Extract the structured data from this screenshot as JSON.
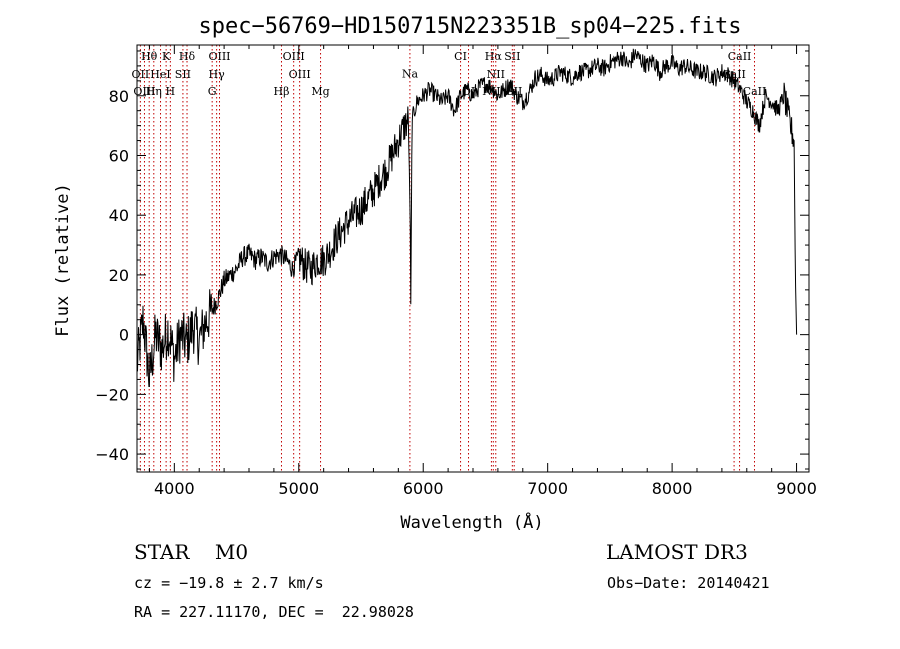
{
  "chart_data": {
    "type": "line",
    "title": "spec−56769−HD150715N223351B_sp04−225.fits",
    "xlabel": "Wavelength (Å)",
    "ylabel": "Flux (relative)",
    "xlim": [
      3700,
      9100
    ],
    "ylim": [
      -46,
      97
    ],
    "x_ticks": [
      4000,
      5000,
      6000,
      7000,
      8000,
      9000
    ],
    "y_ticks": [
      -40,
      -20,
      0,
      20,
      40,
      60,
      80
    ],
    "x_tick_labels": [
      "4000",
      "5000",
      "6000",
      "7000",
      "8000",
      "9000"
    ],
    "y_tick_labels": [
      "−40",
      "−20",
      "0",
      "20",
      "40",
      "60",
      "80"
    ],
    "series": [
      {
        "x": [
          3700,
          3750,
          3800,
          3850,
          3900,
          3950,
          4000,
          4050,
          4100,
          4150,
          4200,
          4250,
          4300,
          4350,
          4400,
          4450,
          4500,
          4550,
          4600,
          4650,
          4700,
          4750,
          4800,
          4850,
          4900,
          4950,
          5000,
          5050,
          5100,
          5150,
          5200,
          5250,
          5300,
          5350,
          5400,
          5450,
          5500,
          5550,
          5600,
          5650,
          5700,
          5750,
          5800,
          5850,
          5880,
          5895,
          5900,
          5910,
          5950,
          6000,
          6050,
          6100,
          6150,
          6200,
          6250,
          6300,
          6350,
          6400,
          6450,
          6500,
          6550,
          6600,
          6650,
          6700,
          6750,
          6800,
          6850,
          6900,
          6950,
          7000,
          7050,
          7100,
          7150,
          7200,
          7250,
          7300,
          7350,
          7400,
          7450,
          7500,
          7550,
          7600,
          7650,
          7700,
          7750,
          7800,
          7850,
          7900,
          7950,
          8000,
          8050,
          8100,
          8150,
          8200,
          8250,
          8300,
          8350,
          8400,
          8450,
          8500,
          8550,
          8600,
          8650,
          8700,
          8750,
          8800,
          8850,
          8900,
          8950,
          8980,
          8990,
          9000
        ],
        "y": [
          -10,
          5,
          -15,
          0,
          -5,
          2,
          -8,
          0,
          -3,
          3,
          -2,
          4,
          8,
          12,
          18,
          20,
          22,
          26,
          27,
          25,
          26,
          24,
          26,
          27,
          25,
          22,
          26,
          23,
          22,
          25,
          25,
          28,
          32,
          35,
          38,
          40,
          42,
          45,
          48,
          52,
          55,
          60,
          65,
          70,
          72,
          40,
          10,
          72,
          78,
          80,
          82,
          80,
          78,
          80,
          75,
          80,
          82,
          80,
          83,
          84,
          83,
          80,
          82,
          84,
          80,
          78,
          81,
          86,
          87,
          85,
          86,
          88,
          87,
          86,
          88,
          88,
          89,
          90,
          89,
          91,
          92,
          93,
          90,
          94,
          92,
          90,
          92,
          88,
          90,
          91,
          89,
          90,
          89,
          88,
          88,
          87,
          86,
          88,
          87,
          85,
          82,
          78,
          75,
          70,
          80,
          78,
          75,
          80,
          70,
          65,
          20,
          0
        ]
      }
    ],
    "spectral_lines": [
      {
        "label": "Hθ",
        "x": 3798,
        "row": 0
      },
      {
        "label": "K",
        "x": 3934,
        "row": 0
      },
      {
        "label": "Hδ",
        "x": 4102,
        "row": 0
      },
      {
        "label": "OIII",
        "x": 4363,
        "row": 0
      },
      {
        "label": "OIII",
        "x": 4959,
        "row": 0
      },
      {
        "label": "CI",
        "x": 6300,
        "row": 0
      },
      {
        "label": "Hα",
        "x": 6563,
        "row": 0
      },
      {
        "label": "SII",
        "x": 6716,
        "row": 0
      },
      {
        "label": "CaII",
        "x": 8542,
        "row": 0
      },
      {
        "label": "OII",
        "x": 3727,
        "row": 1
      },
      {
        "label": "HeI",
        "x": 3889,
        "row": 1
      },
      {
        "label": "SII",
        "x": 4069,
        "row": 1
      },
      {
        "label": "Hγ",
        "x": 4340,
        "row": 1
      },
      {
        "label": "OIII",
        "x": 5007,
        "row": 1
      },
      {
        "label": "NII",
        "x": 6583,
        "row": 1
      },
      {
        "label": "CaII",
        "x": 8498,
        "row": 1
      },
      {
        "label": "OIII",
        "x": 3760,
        "row": 2
      },
      {
        "label": "Hη",
        "x": 3835,
        "row": 2
      },
      {
        "label": "H",
        "x": 3968,
        "row": 2
      },
      {
        "label": "G",
        "x": 4304,
        "row": 2
      },
      {
        "label": "Hβ",
        "x": 4861,
        "row": 2
      },
      {
        "label": "Mg",
        "x": 5175,
        "row": 2
      },
      {
        "label": "Na",
        "x": 5893,
        "row": 1.6
      },
      {
        "label": "OI",
        "x": 6364,
        "row": 2
      },
      {
        "label": "NII",
        "x": 6548,
        "row": 2
      },
      {
        "label": "SII",
        "x": 6731,
        "row": 2
      },
      {
        "label": "CaII",
        "x": 8662,
        "row": 2
      }
    ],
    "grid": false,
    "colors": {
      "spectrum": "#000000",
      "lines": "#c00000"
    }
  },
  "info": {
    "classification": "STAR    M0",
    "survey": "LAMOST DR3",
    "cz": "cz = −19.8 ± 2.7 km/s",
    "obs_date": "Obs−Date: 20140421",
    "coords": "RA = 227.11170, DEC =  22.98028"
  }
}
